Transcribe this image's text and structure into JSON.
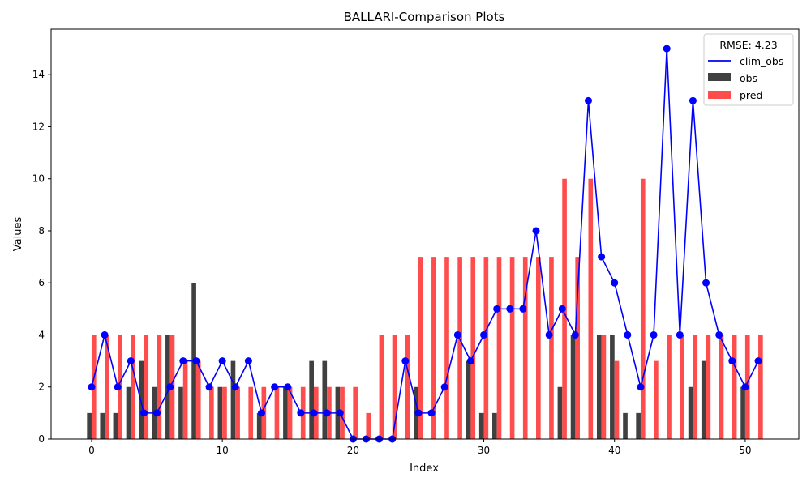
{
  "chart_data": {
    "type": "bar",
    "title": "BALLARI-Comparison Plots",
    "xlabel": "Index",
    "ylabel": "Values",
    "xlim": [
      -3.1,
      54.1
    ],
    "ylim": [
      0,
      15.75
    ],
    "xticks": [
      0,
      10,
      20,
      30,
      40,
      50
    ],
    "yticks": [
      0,
      2,
      4,
      6,
      8,
      10,
      12,
      14
    ],
    "grid": false,
    "legend": {
      "title": "RMSE: 4.23",
      "placement": "top-right"
    },
    "series": [
      {
        "name": "clim_obs",
        "type": "line",
        "color": "#0000ff",
        "values": [
          2,
          4,
          2,
          3,
          1,
          1,
          2,
          3,
          3,
          2,
          3,
          2,
          3,
          1,
          2,
          2,
          1,
          1,
          1,
          1,
          0,
          0,
          0,
          0,
          3,
          1,
          1,
          2,
          4,
          3,
          4,
          5,
          5,
          5,
          8,
          4,
          5,
          4,
          13,
          7,
          6,
          4,
          2,
          4,
          15,
          4,
          13,
          6,
          4,
          3,
          2,
          3
        ]
      },
      {
        "name": "obs",
        "type": "bar",
        "color": "#404040",
        "values": [
          1,
          1,
          1,
          2,
          3,
          2,
          4,
          2,
          6,
          0,
          2,
          3,
          0,
          1,
          0,
          2,
          0,
          3,
          3,
          2,
          0,
          0,
          0,
          0,
          0,
          2,
          0,
          0,
          0,
          3,
          1,
          1,
          0,
          0,
          0,
          0,
          2,
          4,
          0,
          4,
          4,
          1,
          1,
          0,
          0,
          0,
          2,
          3,
          0,
          0,
          2,
          0
        ]
      },
      {
        "name": "pred",
        "type": "bar",
        "color": "#ff4d4d",
        "values": [
          4,
          4,
          4,
          4,
          4,
          4,
          4,
          3,
          3,
          2,
          2,
          2,
          2,
          2,
          2,
          2,
          2,
          2,
          2,
          2,
          2,
          1,
          4,
          4,
          4,
          7,
          7,
          7,
          7,
          7,
          7,
          7,
          7,
          7,
          7,
          7,
          10,
          7,
          10,
          4,
          3,
          0,
          10,
          3,
          4,
          4,
          4,
          4,
          4,
          4,
          4,
          4
        ]
      }
    ]
  }
}
